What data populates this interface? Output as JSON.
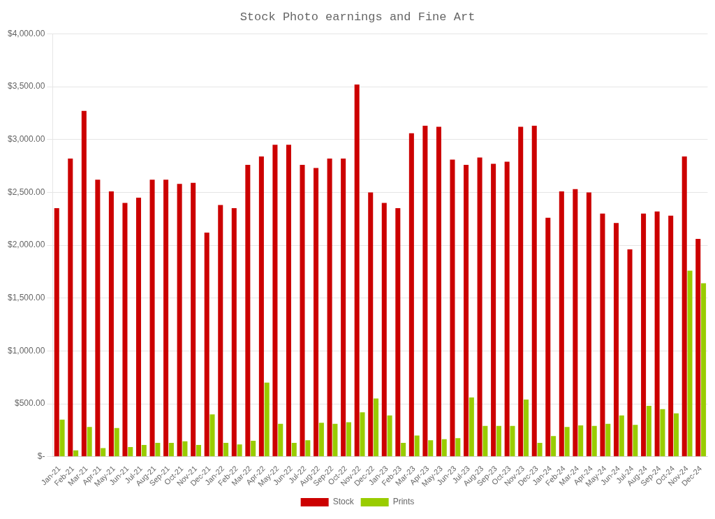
{
  "chart_data": {
    "type": "bar",
    "title": "Stock Photo earnings and Fine Art",
    "categories": [
      "Jan-21",
      "Feb-21",
      "Mar-21",
      "Apr-21",
      "May-21",
      "Jun-21",
      "Jul-21",
      "Aug-21",
      "Sep-21",
      "Oct-21",
      "Nov-21",
      "Dec-21",
      "Jan-22",
      "Feb-22",
      "Mar-22",
      "Apr-22",
      "May-22",
      "Jun-22",
      "Jul-22",
      "Aug-22",
      "Sep-22",
      "Oct-22",
      "Nov-22",
      "Dec-22",
      "Jan-23",
      "Feb-23",
      "Mar-23",
      "Apr-23",
      "May-23",
      "Jun-23",
      "Jul-23",
      "Aug-23",
      "Sep-23",
      "Oct-23",
      "Nov-23",
      "Dec-23",
      "Jan-24",
      "Feb-24",
      "Mar-24",
      "Apr-24",
      "May-24",
      "Jun-24",
      "Jul-24",
      "Aug-24",
      "Sep-24",
      "Oct-24",
      "Nov-24",
      "Dec-24"
    ],
    "series": [
      {
        "name": "Stock",
        "color": "#cc0000",
        "values": [
          2350,
          2820,
          3270,
          2620,
          2510,
          2400,
          2450,
          2620,
          2620,
          2580,
          2590,
          2120,
          2380,
          2350,
          2760,
          2840,
          2950,
          2950,
          2760,
          2730,
          2820,
          2820,
          3520,
          2500,
          2400,
          2350,
          3060,
          3130,
          3120,
          2810,
          2760,
          2830,
          2770,
          2790,
          3120,
          3130,
          2260,
          2510,
          2530,
          2500,
          2300,
          2210,
          1960,
          2300,
          2320,
          2280,
          2840,
          2060
        ]
      },
      {
        "name": "Prints",
        "color": "#99cc00",
        "values": [
          350,
          60,
          280,
          80,
          270,
          90,
          110,
          130,
          130,
          145,
          110,
          400,
          130,
          115,
          150,
          700,
          310,
          130,
          155,
          320,
          310,
          325,
          420,
          550,
          390,
          130,
          200,
          155,
          165,
          175,
          560,
          290,
          290,
          290,
          540,
          130,
          195,
          280,
          295,
          290,
          310,
          390,
          300,
          480,
          450,
          410,
          1760,
          1640
        ]
      }
    ],
    "ylim": [
      0,
      4000
    ],
    "yticks": [
      {
        "value": 0,
        "label": "$-"
      },
      {
        "value": 500,
        "label": "$500.00"
      },
      {
        "value": 1000,
        "label": "$1,000.00"
      },
      {
        "value": 1500,
        "label": "$1,500.00"
      },
      {
        "value": 2000,
        "label": "$2,000.00"
      },
      {
        "value": 2500,
        "label": "$2,500.00"
      },
      {
        "value": 3000,
        "label": "$3,000.00"
      },
      {
        "value": 3500,
        "label": "$3,500.00"
      },
      {
        "value": 4000,
        "label": "$4,000.00"
      }
    ],
    "grid": true,
    "legend": "bottom"
  }
}
